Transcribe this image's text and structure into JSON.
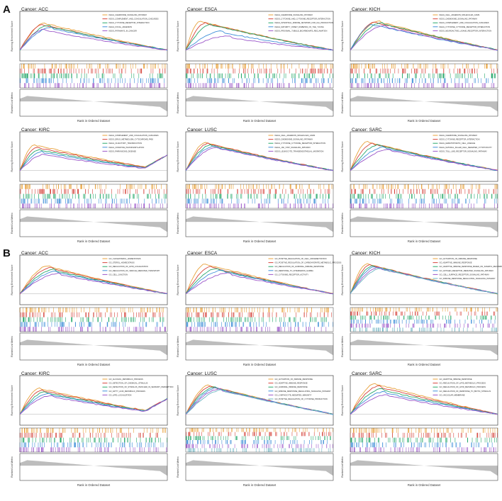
{
  "sections": [
    {
      "letter": "A",
      "panels": [
        {
          "cancer": "Cancer: ACC",
          "legend": [
            "KEGG_CHEMOKINE_SIGNALING_PATHWAY",
            "KEGG_COMPLEMENT_AND_COAGULATION_CASCADES",
            "KEGG_CYTOKINE_RECEPTOR_INTERACTION",
            "KEGG_FOCAL_ADHESION",
            "KEGG_PATHWAYS_IN_CANCER"
          ],
          "peaks": [
            0.58,
            0.55,
            0.52,
            0.48,
            0.44
          ],
          "peakpos": [
            0.18,
            0.16,
            0.2,
            0.22,
            0.17
          ]
        },
        {
          "cancer": "Cancer: ESCA",
          "legend": [
            "KEGG_CHEMOKINE_SIGNALING_PATHWAY",
            "KEGG_CYTOKINE_AND_CYTOKINE_RECEPTOR_INTERACTION",
            "KEGG_INTESTINAL_IMMUNE_NETWORK_FOR_IGA_PRODUCTION",
            "KEGG_MATURITY_ONSET_DIABETES_OF_THE_YOUNG",
            "KEGG_PROXIMAL_TUBULE_BICARBONATE_RECLAMATION"
          ],
          "peaks": [
            0.62,
            0.58,
            0.55,
            0.4,
            0.3
          ],
          "peakpos": [
            0.1,
            0.14,
            0.18,
            0.25,
            0.3
          ]
        },
        {
          "cancer": "Cancer: KICH",
          "legend": [
            "KEGG_CELL_ADHESION_MOLECULES_CAMS",
            "KEGG_CHEMOKINE_SIGNALING_PATHWAY",
            "KEGG_COMPLEMENT_AND_COAGULATION_CASCADES",
            "KEGG_CYTOKINE_CYTOKINE_RECEPTOR_INTERACTION",
            "KEGG_NEUROACTIVE_LIGAND_RECEPTOR_INTERACTION"
          ],
          "peaks": [
            0.62,
            0.6,
            0.58,
            0.55,
            0.52
          ],
          "peakpos": [
            0.2,
            0.18,
            0.22,
            0.16,
            0.24
          ]
        }
      ]
    },
    {
      "letter": "",
      "panels": [
        {
          "cancer": "Cancer: KIRC",
          "legend": [
            "KEGG_COMPLEMENT_AND_COAGULATION_CASCADES",
            "KEGG_DRUG_METABOLISM_CYTOCHROME_P450",
            "KEGG_OLFACTORY_TRANSDUCTION",
            "KEGG_OXIDATIVE_PHOSPHORYLATION",
            "KEGG_PARKINSONS_DISEASE"
          ],
          "peaks": [
            0.55,
            0.5,
            0.45,
            0.4,
            0.35
          ],
          "peakpos": [
            0.1,
            0.12,
            0.14,
            0.16,
            0.18
          ]
        },
        {
          "cancer": "Cancer: LUSC",
          "legend": [
            "KEGG_CELL_ADHESION_MOLECULES_CAMS",
            "KEGG_CHEMOKINE_SIGNALING_PATHWAY",
            "KEGG_CYTOKINE_CYTOKINE_RECEPTOR_INTERACTION",
            "KEGG_JAK_STAT_SIGNALING_PATHWAY",
            "KEGG_LEUKOCYTE_TRANSENDOTHELIAL_MIGRATION"
          ],
          "peaks": [
            0.6,
            0.58,
            0.55,
            0.52,
            0.5
          ],
          "peakpos": [
            0.14,
            0.16,
            0.18,
            0.2,
            0.22
          ]
        },
        {
          "cancer": "Cancer: SARC",
          "legend": [
            "KEGG_CHEMOKINE_SIGNALING_PATHWAY",
            "KEGG_CYTOKINE_RECEPTOR_INTERACTION",
            "KEGG_HEMATOPOIETIC_CELL_LINEAGE",
            "KEGG_NATURAL_KILLER_CELL_MEDIATED_CYTOTOXICITY",
            "KEGG_TOLL_LIKE_RECEPTOR_SIGNALING_PATHWAY"
          ],
          "peaks": [
            0.62,
            0.58,
            0.55,
            0.5,
            0.45
          ],
          "peakpos": [
            0.12,
            0.16,
            0.2,
            0.24,
            0.28
          ]
        }
      ]
    },
    {
      "letter": "B",
      "panels": [
        {
          "cancer": "Cancer: ACC",
          "legend": [
            "GO_CHOLESTEROL_HOMEOSTASIS",
            "GO_STEROL_HOMEOSTASIS",
            "GO_REGULATION_OF_LIPID_LOCALIZATION",
            "GO_REGULATION_OF_VESICLE_MEDIATED_TRANSPORT",
            "GO_CELL_JUNCTION"
          ],
          "peaks": [
            0.6,
            0.56,
            0.52,
            0.48,
            0.44
          ],
          "peakpos": [
            0.2,
            0.22,
            0.24,
            0.26,
            0.28
          ]
        },
        {
          "cancer": "Cancer: ESCA",
          "legend": [
            "GO_POSITIVE_REGULATION_OF_CELL_DIFFERENTIATION",
            "GO_POSITIVE_REGULATION_OF_CARBOHYDRATE_METABOLIC_PROCESS",
            "GO_REGULATION_OF_HUMORAL_IMMUNE_RESPONSE",
            "GO_RESPONSE_TO_INTERFERON_GAMMA",
            "GO_CYTOKINE_RECEPTOR_ACTIVITY"
          ],
          "peaks": [
            0.64,
            0.58,
            0.54,
            0.5,
            0.44
          ],
          "peakpos": [
            0.14,
            0.18,
            0.22,
            0.26,
            0.3
          ]
        },
        {
          "cancer": "Cancer: KICH",
          "legend": [
            "GO_ACTIVATION_OF_IMMUNE_RESPONSE",
            "GO_ADAPTIVE_IMMUNE_RESPONSE",
            "GO_ADAPTIVE_IMMUNE_RESPONSE_BASED_ON_SOMATIC_RECOMBINATION_OF_IMMUNE_RECEPTORS",
            "GO_ANTIGEN_RECEPTOR_MEDIATED_SIGNALING_PATHWAY",
            "GO_CELL_SURFACE_RECEPTOR_SIGNALING_PATHWAY",
            "GO_IMMUNE_RESPONSE_REGULATING_SIGNALING_PATHWAY"
          ],
          "peaks": [
            0.64,
            0.62,
            0.6,
            0.58,
            0.56,
            0.54
          ],
          "peakpos": [
            0.12,
            0.14,
            0.16,
            0.18,
            0.2,
            0.22
          ]
        }
      ]
    },
    {
      "letter": "",
      "panels": [
        {
          "cancer": "Cancer: KIRC",
          "legend": [
            "GO_ALCOHOL_METABOLIC_PROCESS",
            "GO_DETECTION_OF_CHEMICAL_STIMULUS",
            "GO_DETECTION_OF_STIMULUS_INVOLVED_IN_SENSORY_PERCEPTION",
            "GO_FATTY_ACID_METABOLIC_PROCESS",
            "GO_LIPID_LOCALIZATION"
          ],
          "peaks": [
            0.56,
            0.52,
            0.48,
            0.44,
            0.4
          ],
          "peakpos": [
            0.14,
            0.16,
            0.18,
            0.2,
            0.22
          ]
        },
        {
          "cancer": "Cancer: LUSC",
          "legend": [
            "GO_ACTIVATION_OF_IMMUNE_RESPONSE",
            "GO_ADAPTIVE_IMMUNE_RESPONSE",
            "GO_HUMORAL_IMMUNE_RESPONSE",
            "GO_IMMUNE_RESPONSE_REGULATING_SIGNALING_PATHWAY",
            "GO_LYMPHOCYTE_MEDIATED_IMMUNITY",
            "GO_POSITIVE_REGULATION_OF_CYTOKINE_PRODUCTION"
          ],
          "peaks": [
            0.62,
            0.6,
            0.58,
            0.56,
            0.54,
            0.52
          ],
          "peakpos": [
            0.16,
            0.18,
            0.2,
            0.22,
            0.24,
            0.26
          ]
        },
        {
          "cancer": "Cancer: SARC",
          "legend": [
            "GO_ADAPTIVE_IMMUNE_RESPONSE",
            "GO_REGULATION_OF_LIPID_METABOLIC_PROCESS",
            "GO_REGULATION_OF_LIPID_METABOLIC_PROCESS",
            "GO_REGULATION_OF_RESPONSE_TO_BIOTIC_STIMULUS",
            "GO_VACUOLAR_MEMBRANE"
          ],
          "peaks": [
            0.66,
            0.6,
            0.54,
            0.48,
            0.42
          ],
          "peakpos": [
            0.18,
            0.2,
            0.22,
            0.24,
            0.26
          ]
        }
      ]
    }
  ],
  "ylabel_top": "Running Enrichment Score",
  "ylabel_bottom": "Ranked List Metric",
  "xlabel": "Rank in Ordered Dataset",
  "colors": [
    "#e8a13a",
    "#d6453d",
    "#27a86b",
    "#3f8fd8",
    "#9b56c9",
    "#6bb3c2"
  ],
  "chart_data": {
    "type": "line",
    "title": "",
    "xlabel": "Rank in Ordered Dataset",
    "ylabel": "Running Enrichment Score",
    "note_series": "Gene set enrichment curves; peak enrichment scores per panel listed in sections[].panels[].peaks"
  }
}
